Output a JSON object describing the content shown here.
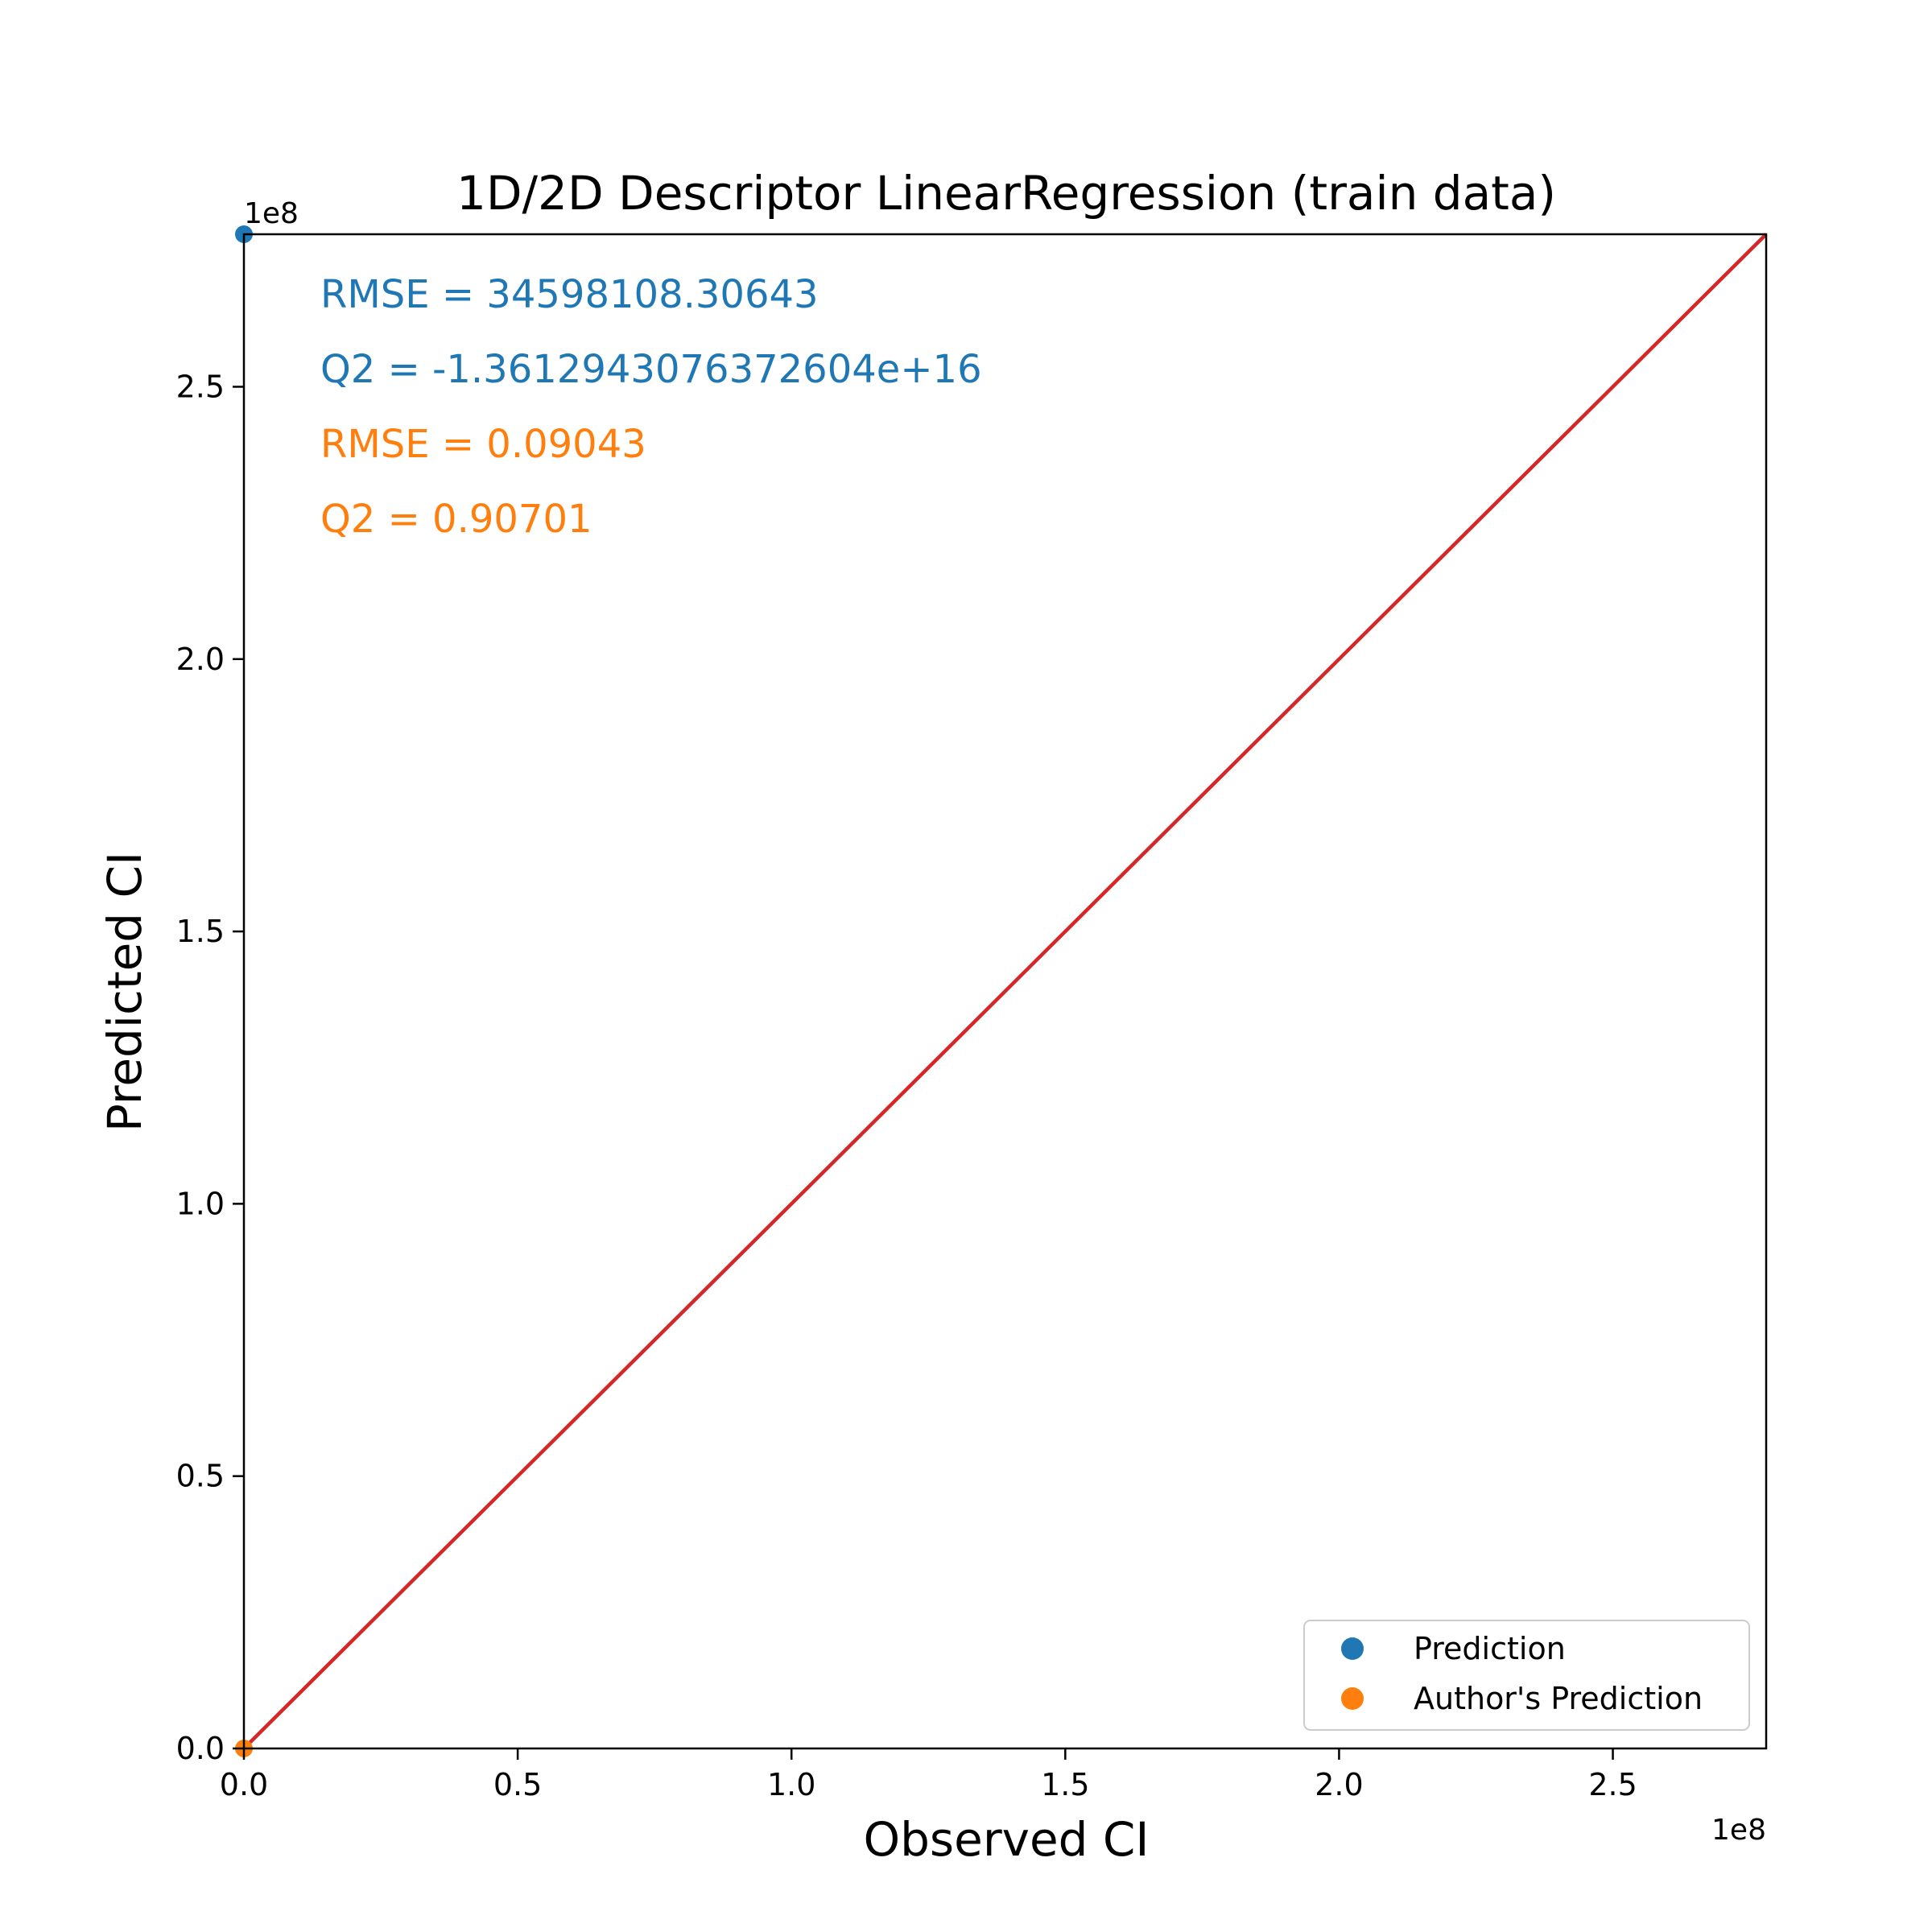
{
  "chart_data": {
    "type": "scatter",
    "title": "1D/2D Descriptor LinearRegression (train data)",
    "xlabel": "Observed CI",
    "ylabel": "Predicted CI",
    "x_offset_label": "1e8",
    "y_offset_label": "1e8",
    "xlim": [
      0,
      2.78
    ],
    "ylim": [
      0,
      2.78
    ],
    "xticks": [
      0.0,
      0.5,
      1.0,
      1.5,
      2.0,
      2.5
    ],
    "yticks": [
      0.0,
      0.5,
      1.0,
      1.5,
      2.0,
      2.5
    ],
    "tick_labels_x": [
      "0.0",
      "0.5",
      "1.0",
      "1.5",
      "2.0",
      "2.5"
    ],
    "tick_labels_y": [
      "0.0",
      "0.5",
      "1.0",
      "1.5",
      "2.0",
      "2.5"
    ],
    "grid": false,
    "legend_position": "lower-right",
    "series": [
      {
        "name": "Prediction",
        "color": "#1f77b4",
        "points": [
          [
            0.0,
            2.78
          ]
        ]
      },
      {
        "name": "Author's Prediction",
        "color": "#ff7f0e",
        "points": [
          [
            0.0,
            0.0
          ]
        ]
      }
    ],
    "reference_line": {
      "color": "#d62728",
      "from": [
        0,
        0
      ],
      "to": [
        2.78,
        2.78
      ]
    },
    "annotations": [
      {
        "text": "RMSE = 34598108.30643",
        "color": "#1f77b4"
      },
      {
        "text": "Q2 = -1.3612943076372604e+16",
        "color": "#1f77b4"
      },
      {
        "text": "RMSE = 0.09043",
        "color": "#ff7f0e"
      },
      {
        "text": "Q2 = 0.90701",
        "color": "#ff7f0e"
      }
    ]
  }
}
